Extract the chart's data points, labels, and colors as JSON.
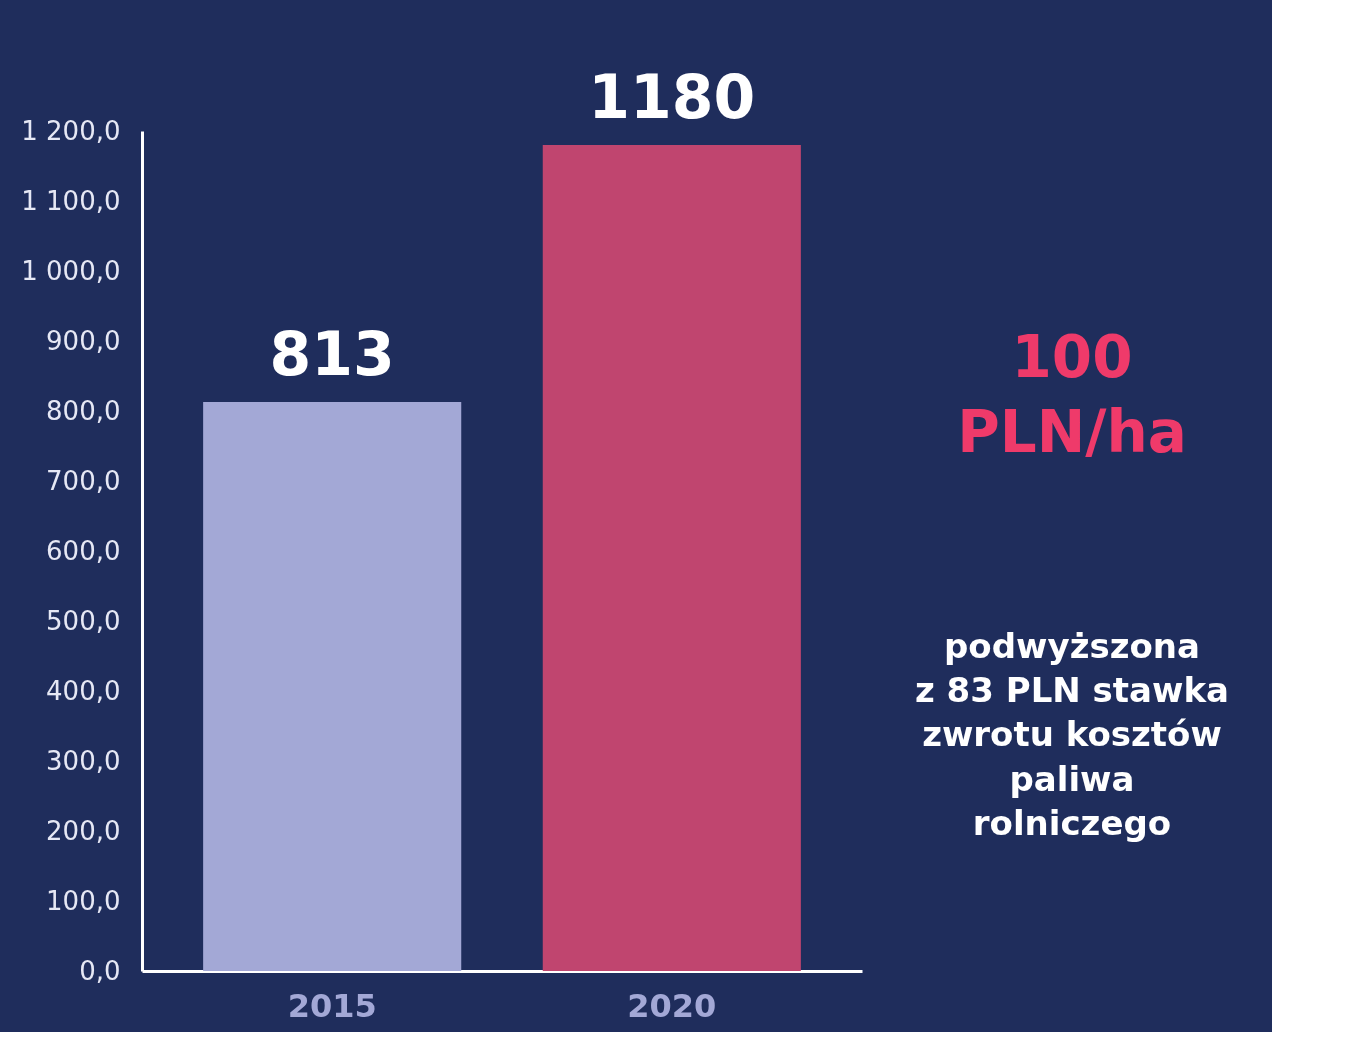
{
  "chart_data": {
    "type": "bar",
    "categories": [
      "2015",
      "2020"
    ],
    "values": [
      813,
      1180
    ],
    "colors": [
      "#a3a8d6",
      "#c0456f"
    ],
    "ylim": [
      0,
      1200
    ],
    "yticks": [
      {
        "value": 0,
        "label": "0,0"
      },
      {
        "value": 100,
        "label": "100,0"
      },
      {
        "value": 200,
        "label": "200,0"
      },
      {
        "value": 300,
        "label": "300,0"
      },
      {
        "value": 400,
        "label": "400,0"
      },
      {
        "value": 500,
        "label": "500,0"
      },
      {
        "value": 600,
        "label": "600,0"
      },
      {
        "value": 700,
        "label": "700,0"
      },
      {
        "value": 800,
        "label": "800,0"
      },
      {
        "value": 900,
        "label": "900,0"
      },
      {
        "value": 1000,
        "label": "1 000,0"
      },
      {
        "value": 1100,
        "label": "1 100,0"
      },
      {
        "value": 1200,
        "label": "1 200,0"
      }
    ],
    "data_labels": true,
    "grid": false,
    "annotations": [
      "100\nPLN/ha",
      "podwyższona\nz 83 PLN stawka\nzwrotu kosztów\npaliwa\nrolniczego"
    ]
  }
}
